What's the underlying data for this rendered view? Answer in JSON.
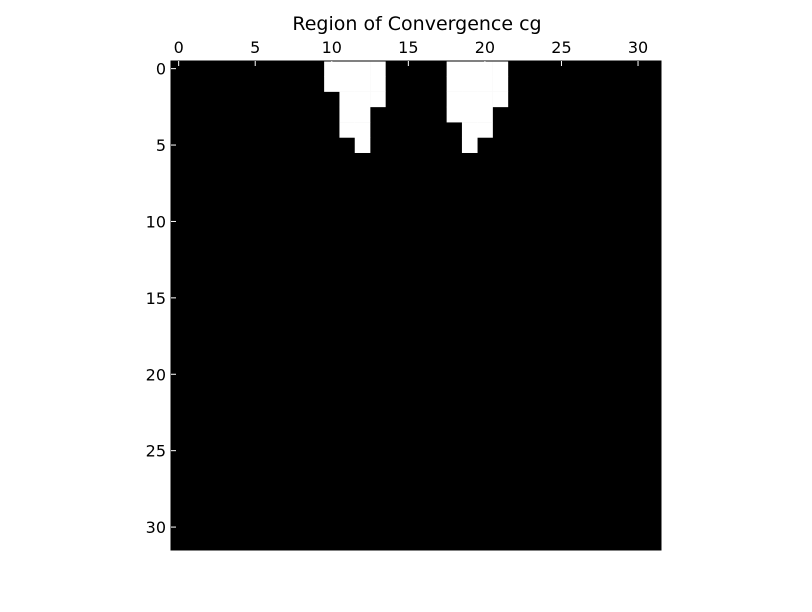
{
  "chart_data": {
    "type": "heatmap",
    "title": "Region of Convergence cg",
    "xlabel": "",
    "ylabel": "",
    "rows": 32,
    "cols": 32,
    "xlim": [
      -0.5,
      31.5
    ],
    "ylim": [
      31.5,
      -0.5
    ],
    "x_ticks": [
      0,
      5,
      10,
      15,
      20,
      25,
      30
    ],
    "y_ticks": [
      0,
      5,
      10,
      15,
      20,
      25,
      30
    ],
    "x_axis_position": "top",
    "grid": false,
    "colormap": {
      "0": "#000000",
      "1": "#ffffff"
    },
    "converged_cells": [
      {
        "row": 0,
        "cols": [
          10,
          11,
          12,
          13,
          18,
          19,
          20,
          21
        ]
      },
      {
        "row": 1,
        "cols": [
          10,
          11,
          12,
          13,
          18,
          19,
          20,
          21
        ]
      },
      {
        "row": 2,
        "cols": [
          11,
          12,
          13,
          18,
          19,
          20,
          21
        ]
      },
      {
        "row": 3,
        "cols": [
          11,
          12,
          18,
          19,
          20
        ]
      },
      {
        "row": 4,
        "cols": [
          11,
          12,
          19,
          20
        ]
      },
      {
        "row": 5,
        "cols": [
          12,
          19
        ]
      }
    ]
  }
}
